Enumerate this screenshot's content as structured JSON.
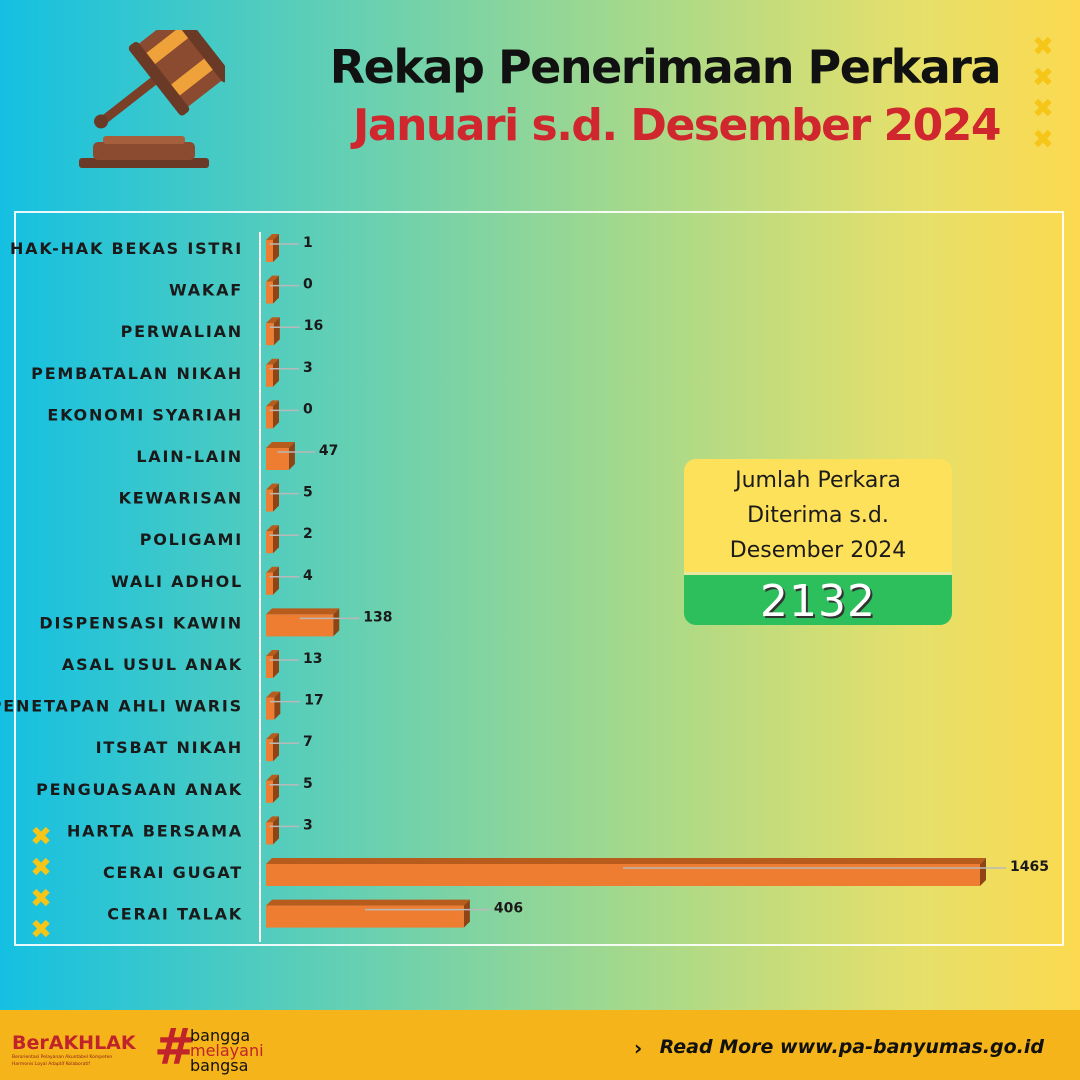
{
  "header": {
    "title": "Rekap Penerimaan Perkara",
    "subtitle": "Januari s.d. Desember 2024",
    "decor_glyph": "✖",
    "icon": "gavel-icon"
  },
  "chart_data": {
    "type": "bar",
    "orientation": "horizontal",
    "title": "",
    "xlabel": "",
    "ylabel": "",
    "grid": false,
    "legend": false,
    "bar_color": "#ee7d32",
    "categories": [
      "HAK-HAK BEKAS ISTRI",
      "WAKAF",
      "PERWALIAN",
      "PEMBATALAN NIKAH",
      "EKONOMI SYARIAH",
      "LAIN-LAIN",
      "KEWARISAN",
      "POLIGAMI",
      "WALI ADHOL",
      "DISPENSASI KAWIN",
      "ASAL USUL ANAK",
      "PENETAPAN AHLI WARIS",
      "ITSBAT NIKAH",
      "PENGUASAAN ANAK",
      "HARTA BERSAMA",
      "CERAI GUGAT",
      "CERAI TALAK"
    ],
    "values": [
      1,
      0,
      16,
      3,
      0,
      47,
      5,
      2,
      4,
      138,
      13,
      17,
      7,
      5,
      3,
      1465,
      406
    ],
    "xlim": [
      0,
      1465
    ]
  },
  "total": {
    "label_lines": [
      "Jumlah Perkara",
      "Diterima s.d.",
      "Desember 2024"
    ],
    "value": "2132",
    "top_color": "#fde15a",
    "bottom_color": "#2dbf5c"
  },
  "footer": {
    "brand": "BerAKHLAK",
    "brand_tagline": [
      "Berorientasi Pelayanan Akuntabel Kompeten",
      "Harmonis Loyal Adaptif Kolaboratif"
    ],
    "hashtag": "#",
    "slogan": [
      "bangga",
      "melayani",
      "bangsa"
    ],
    "read_more": "Read More www.pa-banyumas.go.id",
    "chevron": "›"
  }
}
